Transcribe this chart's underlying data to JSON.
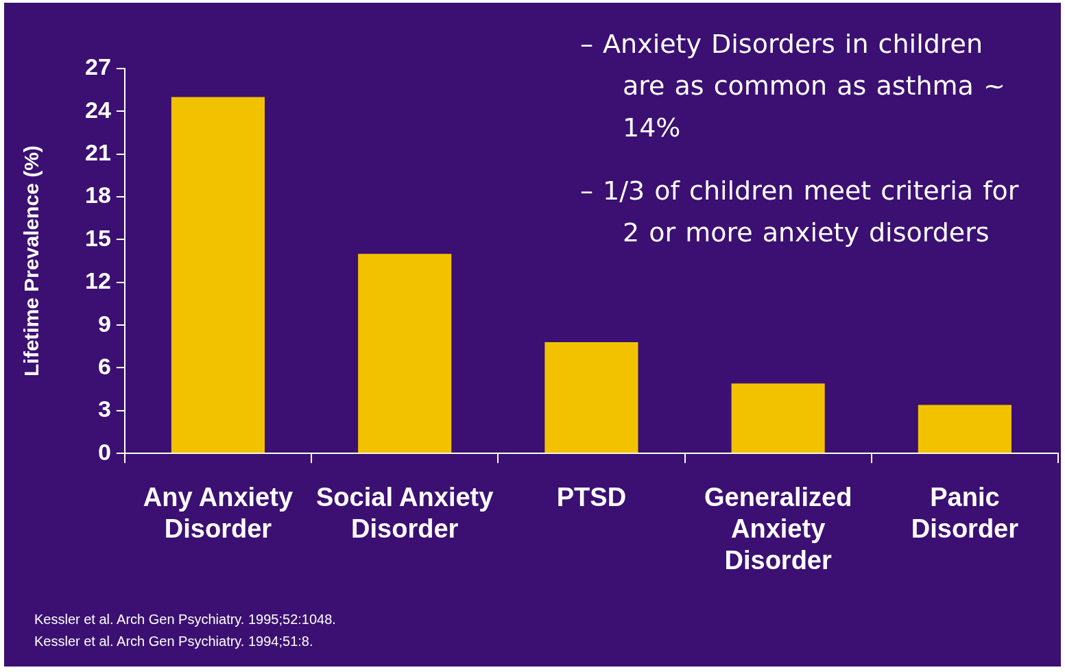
{
  "chart_data": {
    "type": "bar",
    "categories": [
      "Any Anxiety Disorder",
      "Social Anxiety Disorder",
      "PTSD",
      "Generalized Anxiety Disorder",
      "Panic Disorder"
    ],
    "values": [
      25,
      14,
      7.8,
      4.9,
      3.4
    ],
    "color": "#f2c200",
    "ylabel": "Lifetime Prevalence (%)",
    "ylim": [
      0,
      27
    ],
    "yticks": [
      0,
      3,
      6,
      9,
      12,
      15,
      18,
      21,
      24,
      27
    ],
    "annotations": [
      "– Anxiety Disorders in children are as common as asthma ~ 14%",
      "– 1/3 of children meet criteria for 2 or more anxiety disorders",
      "Kessler et al. Arch Gen Psychiatry. 1995;52:1048.",
      "Kessler et al. Arch Gen Psychiatry. 1994;51:8."
    ]
  }
}
